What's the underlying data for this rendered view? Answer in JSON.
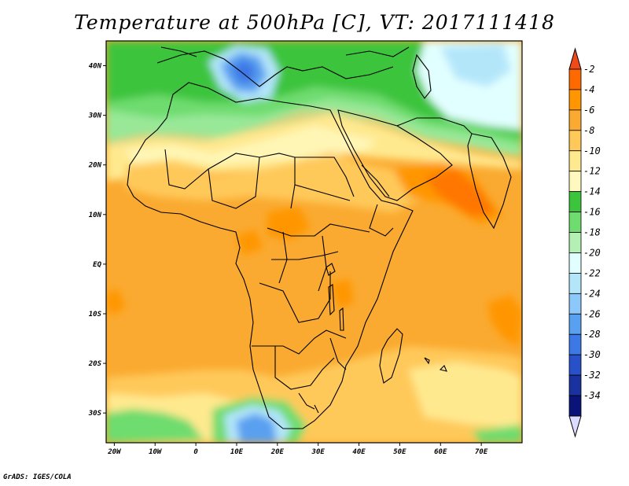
{
  "title": "Temperature at 500hPa [C], VT: 2017111418",
  "credit": "GrADS: IGES/COLA",
  "map": {
    "region": "Africa and surrounding seas",
    "lon_range": [
      -22,
      80
    ],
    "lat_range": [
      -36,
      45
    ],
    "lat_ticks": [
      {
        "value": 40,
        "label": "40N"
      },
      {
        "value": 30,
        "label": "30N"
      },
      {
        "value": 20,
        "label": "20N"
      },
      {
        "value": 10,
        "label": "10N"
      },
      {
        "value": 0,
        "label": "EQ"
      },
      {
        "value": -10,
        "label": "10S"
      },
      {
        "value": -20,
        "label": "20S"
      },
      {
        "value": -30,
        "label": "30S"
      }
    ],
    "lon_ticks": [
      {
        "value": -20,
        "label": "20W"
      },
      {
        "value": -10,
        "label": "10W"
      },
      {
        "value": 0,
        "label": "0"
      },
      {
        "value": 10,
        "label": "10E"
      },
      {
        "value": 20,
        "label": "20E"
      },
      {
        "value": 30,
        "label": "30E"
      },
      {
        "value": 40,
        "label": "40E"
      },
      {
        "value": 50,
        "label": "50E"
      },
      {
        "value": 60,
        "label": "60E"
      },
      {
        "value": 70,
        "label": "70E"
      }
    ]
  },
  "colorbar": {
    "levels": [
      {
        "label": "-2",
        "color": "#ff6a00"
      },
      {
        "label": "-4",
        "color": "#ff9600"
      },
      {
        "label": "-6",
        "color": "#faaa30"
      },
      {
        "label": "-8",
        "color": "#ffc95a"
      },
      {
        "label": "-10",
        "color": "#ffe98f"
      },
      {
        "label": "-12",
        "color": "#fff9bf"
      },
      {
        "label": "-14",
        "color": "#3cc43c"
      },
      {
        "label": "-16",
        "color": "#6edc6e"
      },
      {
        "label": "-18",
        "color": "#b4f0b4"
      },
      {
        "label": "-20",
        "color": "#e1ffff"
      },
      {
        "label": "-22",
        "color": "#b4e6fa"
      },
      {
        "label": "-24",
        "color": "#8cc8fa"
      },
      {
        "label": "-26",
        "color": "#5aa0f0"
      },
      {
        "label": "-28",
        "color": "#3c78e6"
      },
      {
        "label": "-30",
        "color": "#2850c8"
      },
      {
        "label": "-32",
        "color": "#1a32a0"
      },
      {
        "label": "-34",
        "color": "#0a1478"
      }
    ],
    "top_triangle_color": "#f04a1a",
    "bottom_triangle_color": "#dcdcff"
  }
}
